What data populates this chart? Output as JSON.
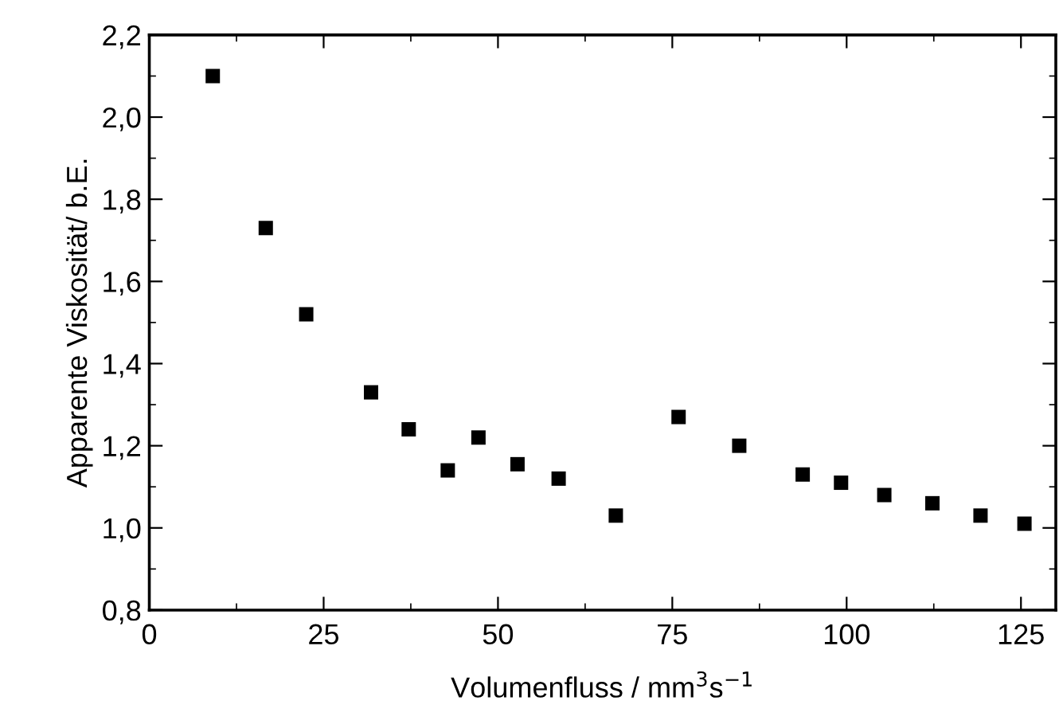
{
  "chart_data": {
    "type": "scatter",
    "xlabel": "Volumenfluss / mm$^{3}$s$^{−1}$",
    "ylabel": "Apparente Viskosität/ b.E.",
    "x": [
      9.1,
      16.7,
      22.5,
      31.8,
      37.2,
      42.8,
      47.2,
      52.8,
      58.7,
      66.9,
      75.9,
      84.6,
      93.7,
      99.2,
      105.4,
      112.3,
      119.2,
      125.5
    ],
    "series": [
      {
        "color": "#000000",
        "values": [
          2.1,
          1.73,
          1.52,
          1.33,
          1.24,
          1.14,
          1.22,
          1.155,
          1.12,
          1.03,
          1.27,
          1.2,
          1.13,
          1.11,
          1.08,
          1.06,
          1.03,
          1.01
        ]
      }
    ],
    "marker": "square",
    "grid": false,
    "legend": false,
    "xlim": [
      0,
      130
    ],
    "xticks": [
      0,
      25,
      50,
      75,
      100,
      125
    ],
    "ylim": [
      0.8,
      2.2
    ],
    "yticks": [
      {
        "value": 0.8,
        "label": "0,8"
      },
      {
        "value": 1.0,
        "label": "1,0"
      },
      {
        "value": 1.2,
        "label": "1,2"
      },
      {
        "value": 1.4,
        "label": "1,4"
      },
      {
        "value": 1.6,
        "label": "1,6"
      },
      {
        "value": 1.8,
        "label": "1,8"
      },
      {
        "value": 2.0,
        "label": "2,0"
      },
      {
        "value": 2.2,
        "label": "2,2"
      }
    ]
  }
}
